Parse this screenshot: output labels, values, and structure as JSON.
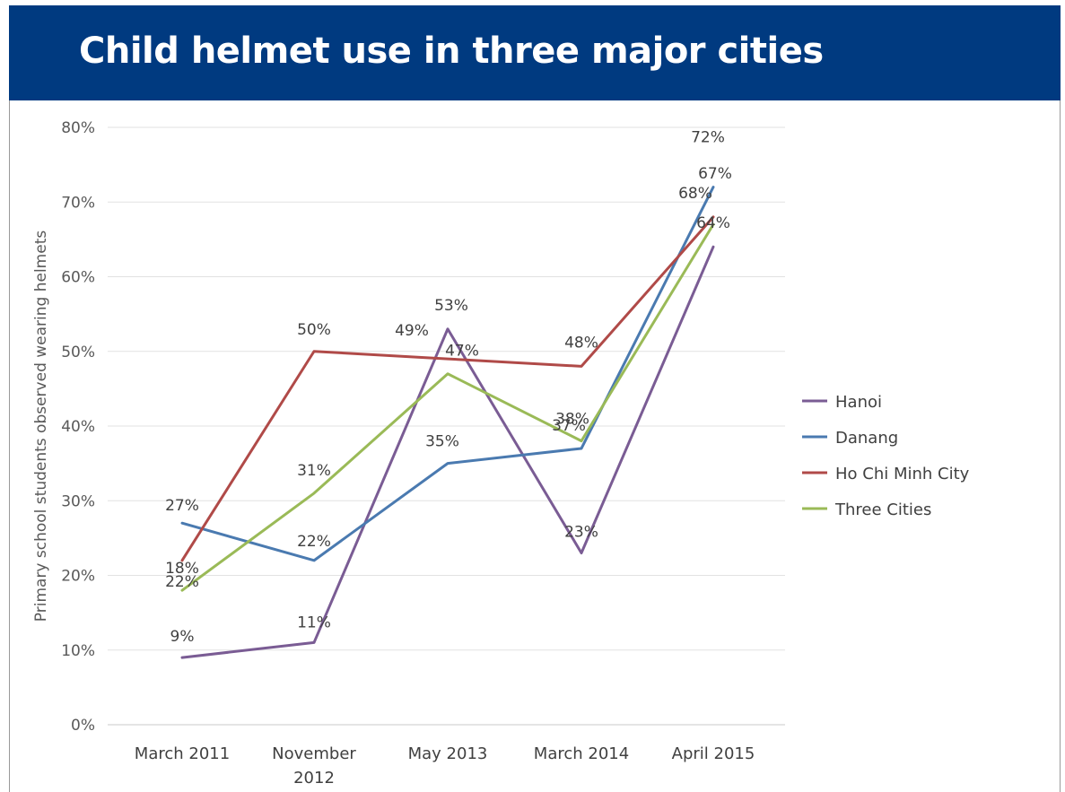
{
  "header": {
    "title": "Child helmet use in three major cities"
  },
  "chart_data": {
    "type": "line",
    "title": "",
    "ylabel": "Primary school students observed wearing helmets",
    "xlabel": "",
    "categories": [
      "March 2011",
      "November 2012",
      "May 2013",
      "March 2014",
      "April 2015"
    ],
    "y_ticks": [
      "0%",
      "10%",
      "20%",
      "30%",
      "40%",
      "50%",
      "60%",
      "70%",
      "80%"
    ],
    "ylim": [
      0,
      80
    ],
    "grid": true,
    "legend_position": "right",
    "series": [
      {
        "name": "Hanoi",
        "color": "#7a5c94",
        "values": [
          9,
          11,
          53,
          23,
          64
        ],
        "labels": [
          "9%",
          "11%",
          "53%",
          "23%",
          "64%"
        ]
      },
      {
        "name": "Danang",
        "color": "#4a7ab0",
        "values": [
          27,
          22,
          35,
          37,
          72
        ],
        "labels": [
          "27%",
          "22%",
          "35%",
          "37%",
          "72%"
        ]
      },
      {
        "name": "Ho Chi Minh City",
        "color": "#b04a48",
        "values": [
          22,
          50,
          49,
          48,
          68
        ],
        "labels": [
          "22%",
          "50%",
          "49%",
          "48%",
          "68%"
        ]
      },
      {
        "name": "Three Cities",
        "color": "#9aba57",
        "values": [
          18,
          31,
          47,
          38,
          67
        ],
        "labels": [
          "18%",
          "31%",
          "47%",
          "38%",
          "67%"
        ]
      }
    ]
  }
}
